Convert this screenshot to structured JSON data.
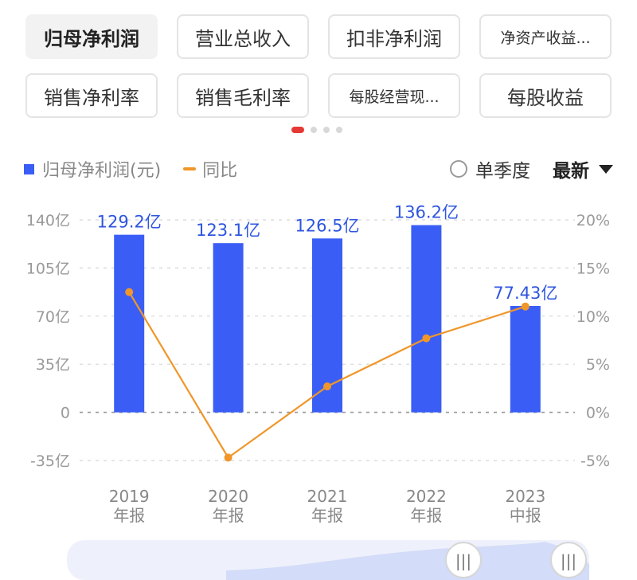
{
  "tabs": [
    {
      "label": "归母净利润",
      "active": true
    },
    {
      "label": "营业总收入"
    },
    {
      "label": "扣非净利润"
    },
    {
      "label": "净资产收益..."
    },
    {
      "label": "销售净利率"
    },
    {
      "label": "销售毛利率"
    },
    {
      "label": "每股经营现..."
    },
    {
      "label": "每股收益"
    }
  ],
  "page_dots": {
    "count": 4,
    "active_index": 0
  },
  "legend": {
    "bar_label": "归母净利润(元)",
    "line_label": "同比"
  },
  "controls": {
    "quarterly_label": "单季度",
    "latest_label": "最新"
  },
  "colors": {
    "bar": "#3a5ef5",
    "line": "#f0962a",
    "value_label": "#2e55e0"
  },
  "chart_data": {
    "type": "bar+line",
    "categories": [
      [
        "2019",
        "年报"
      ],
      [
        "2020",
        "年报"
      ],
      [
        "2021",
        "年报"
      ],
      [
        "2022",
        "年报"
      ],
      [
        "2023",
        "中报"
      ]
    ],
    "series": [
      {
        "name": "归母净利润(元)",
        "type": "bar",
        "axis": "left",
        "values": [
          129.2,
          123.1,
          126.5,
          136.2,
          77.43
        ],
        "labels": [
          "129.2亿",
          "123.1亿",
          "126.5亿",
          "136.2亿",
          "77.43亿"
        ]
      },
      {
        "name": "同比",
        "type": "line",
        "axis": "right",
        "values": [
          12.5,
          -4.7,
          2.7,
          7.7,
          11.0
        ]
      }
    ],
    "left_axis": {
      "ticks": [
        140,
        105,
        70,
        35,
        0,
        -35
      ],
      "tick_labels": [
        "140亿",
        "105亿",
        "70亿",
        "35亿",
        "0",
        "-35亿"
      ],
      "range": [
        -35,
        140
      ]
    },
    "right_axis": {
      "ticks": [
        20,
        15,
        10,
        5,
        0,
        -5
      ],
      "tick_labels": [
        "20%",
        "15%",
        "10%",
        "5%",
        "0%",
        "-5%"
      ],
      "range": [
        -5,
        20
      ]
    },
    "grid": "dashed horizontal"
  },
  "slider": {
    "handle_glyph": "|||"
  }
}
